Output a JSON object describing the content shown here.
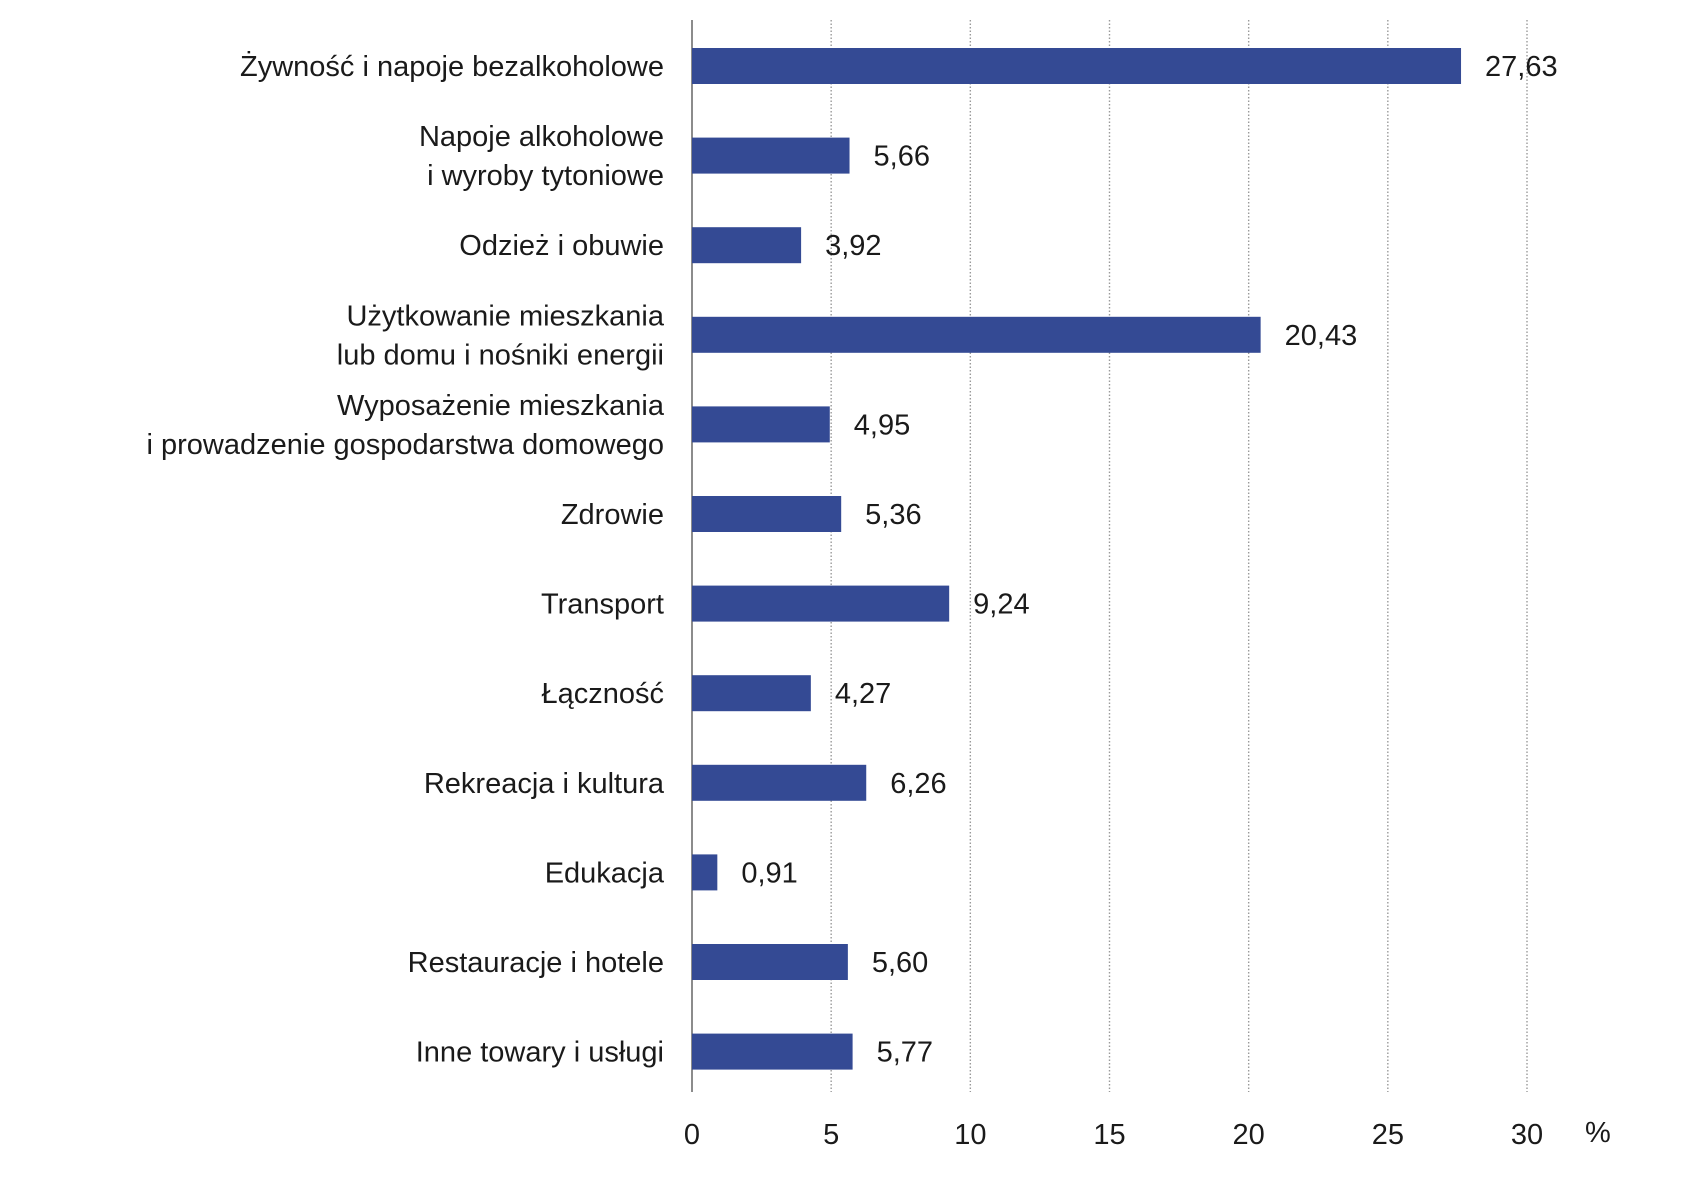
{
  "chart_data": {
    "type": "bar",
    "orientation": "horizontal",
    "categories": [
      [
        "Żywność i napoje bezalkoholowe"
      ],
      [
        "Napoje alkoholowe",
        "i wyroby tytoniowe"
      ],
      [
        "Odzież i obuwie"
      ],
      [
        "Użytkowanie mieszkania",
        "lub domu i nośniki energii"
      ],
      [
        "Wyposażenie mieszkania",
        "i prowadzenie gospodarstwa domowego"
      ],
      [
        "Zdrowie"
      ],
      [
        "Transport"
      ],
      [
        "Łączność"
      ],
      [
        "Rekreacja i kultura"
      ],
      [
        "Edukacja"
      ],
      [
        "Restauracje i hotele"
      ],
      [
        "Inne towary i usługi"
      ]
    ],
    "values": [
      27.63,
      5.66,
      3.92,
      20.43,
      4.95,
      5.36,
      9.24,
      4.27,
      6.26,
      0.91,
      5.6,
      5.77
    ],
    "value_labels": [
      "27,63",
      "5,66",
      "3,92",
      "20,43",
      "4,95",
      "5,36",
      "9,24",
      "4,27",
      "6,26",
      "0,91",
      "5,60",
      "5,77"
    ],
    "xlim": [
      0,
      30
    ],
    "x_ticks": [
      0,
      5,
      10,
      15,
      20,
      25,
      30
    ],
    "x_tick_labels": [
      "0",
      "5",
      "10",
      "15",
      "20",
      "25",
      "30"
    ],
    "x_unit": "%",
    "title": "",
    "xlabel": "",
    "ylabel": "",
    "grid": "vertical dotted",
    "legend": "none",
    "bar_color": "#344a94",
    "grid_color": "#9a9a9a",
    "axis_color": "#8c8c8c"
  }
}
